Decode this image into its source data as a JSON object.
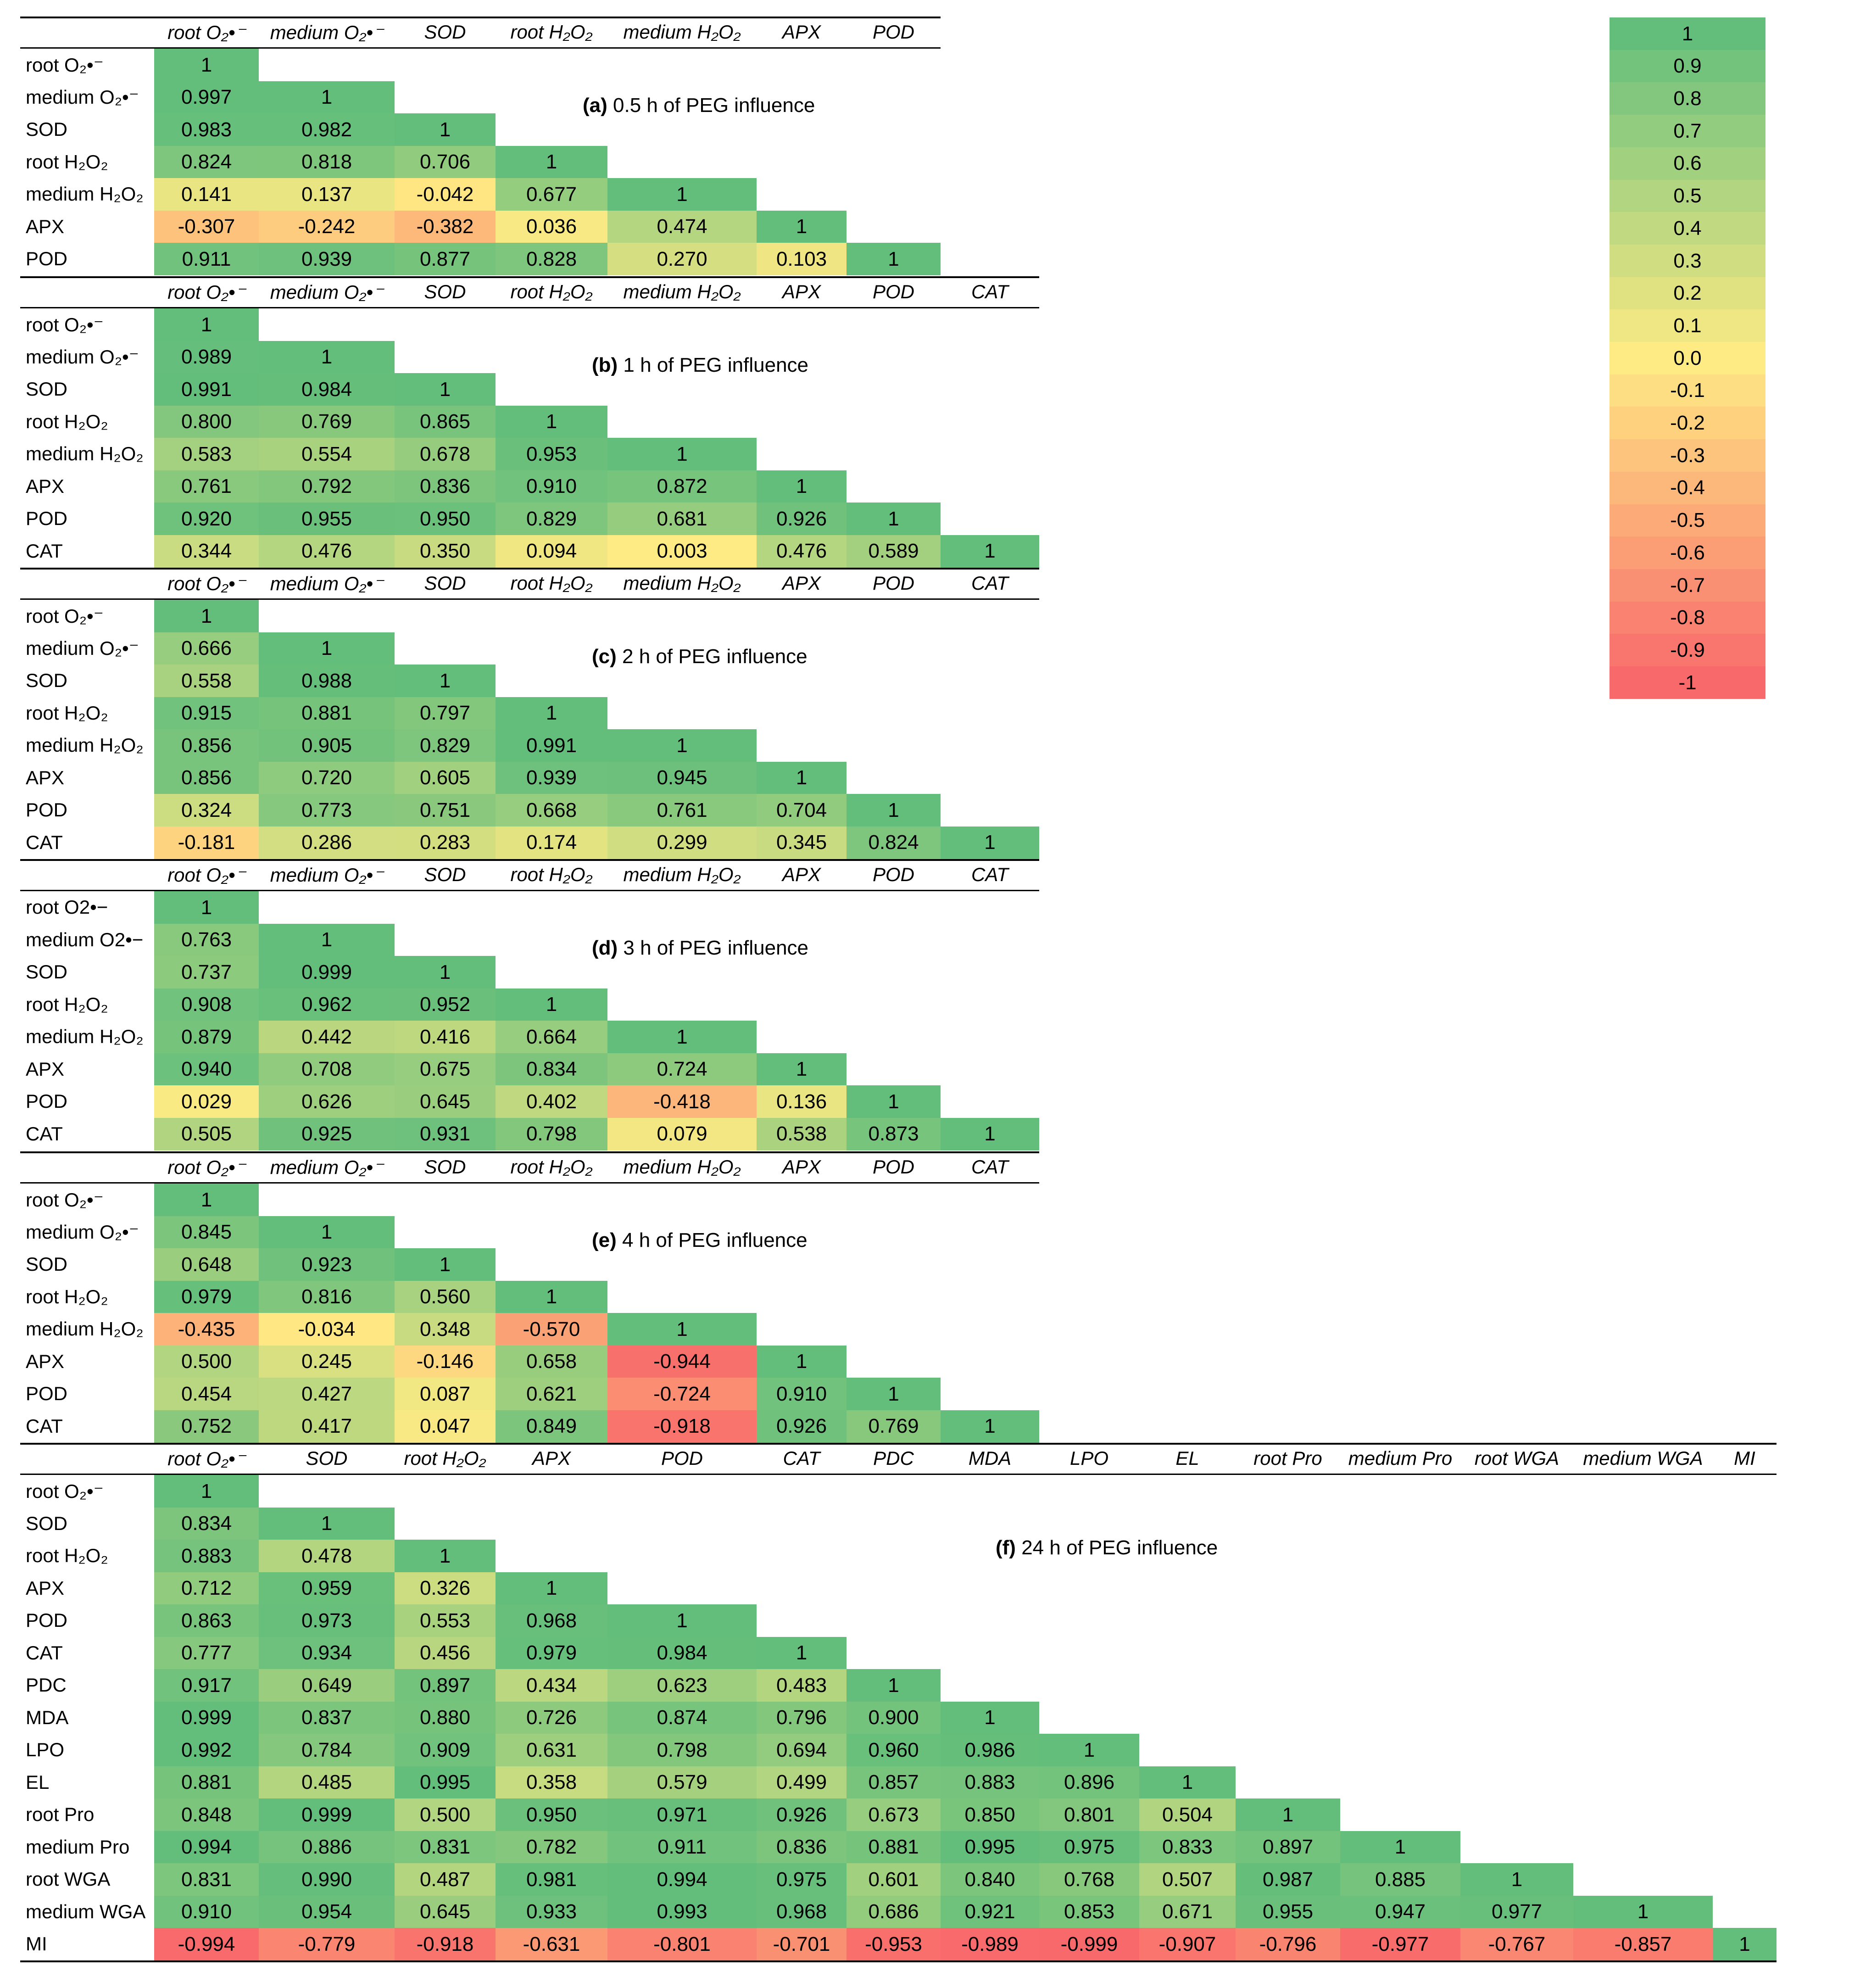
{
  "chart_data": [
    {
      "type": "heatmap",
      "panel": "(a)",
      "title": "0.5 h of PEG influence",
      "col_labels": [
        "root O₂•⁻",
        "medium O₂•⁻",
        "SOD",
        "root H₂O₂",
        "medium H₂O₂",
        "APX",
        "POD"
      ],
      "row_labels": [
        "root O₂•⁻",
        "medium O₂•⁻",
        "SOD",
        "root H₂O₂",
        "medium H₂O₂",
        "APX",
        "POD"
      ],
      "values": [
        [
          "1"
        ],
        [
          "0.997",
          "1"
        ],
        [
          "0.983",
          "0.982",
          "1"
        ],
        [
          "0.824",
          "0.818",
          "0.706",
          "1"
        ],
        [
          "0.141",
          "0.137",
          "-0.042",
          "0.677",
          "1"
        ],
        [
          "-0.307",
          "-0.242",
          "-0.382",
          "0.036",
          "0.474",
          "1"
        ],
        [
          "0.911",
          "0.939",
          "0.877",
          "0.828",
          "0.270",
          "0.103",
          "1"
        ]
      ]
    },
    {
      "type": "heatmap",
      "panel": "(b)",
      "title": "1 h of PEG influence",
      "col_labels": [
        "root O₂•⁻",
        "medium O₂•⁻",
        "SOD",
        "root H₂O₂",
        "medium H₂O₂",
        "APX",
        "POD",
        "CAT"
      ],
      "row_labels": [
        "root O₂•⁻",
        "medium O₂•⁻",
        "SOD",
        "root H₂O₂",
        "medium H₂O₂",
        "APX",
        "POD",
        "CAT"
      ],
      "values": [
        [
          "1"
        ],
        [
          "0.989",
          "1"
        ],
        [
          "0.991",
          "0.984",
          "1"
        ],
        [
          "0.800",
          "0.769",
          "0.865",
          "1"
        ],
        [
          "0.583",
          "0.554",
          "0.678",
          "0.953",
          "1"
        ],
        [
          "0.761",
          "0.792",
          "0.836",
          "0.910",
          "0.872",
          "1"
        ],
        [
          "0.920",
          "0.955",
          "0.950",
          "0.829",
          "0.681",
          "0.926",
          "1"
        ],
        [
          "0.344",
          "0.476",
          "0.350",
          "0.094",
          "0.003",
          "0.476",
          "0.589",
          "1"
        ]
      ]
    },
    {
      "type": "heatmap",
      "panel": "(c)",
      "title": "2 h of PEG influence",
      "col_labels": [
        "root O₂•⁻",
        "medium O₂•⁻",
        "SOD",
        "root H₂O₂",
        "medium H₂O₂",
        "APX",
        "POD",
        "CAT"
      ],
      "row_labels": [
        "root O₂•⁻",
        "medium O₂•⁻",
        "SOD",
        "root H₂O₂",
        "medium H₂O₂",
        "APX",
        "POD",
        "CAT"
      ],
      "values": [
        [
          "1"
        ],
        [
          "0.666",
          "1"
        ],
        [
          "0.558",
          "0.988",
          "1"
        ],
        [
          "0.915",
          "0.881",
          "0.797",
          "1"
        ],
        [
          "0.856",
          "0.905",
          "0.829",
          "0.991",
          "1"
        ],
        [
          "0.856",
          "0.720",
          "0.605",
          "0.939",
          "0.945",
          "1"
        ],
        [
          "0.324",
          "0.773",
          "0.751",
          "0.668",
          "0.761",
          "0.704",
          "1"
        ],
        [
          "-0.181",
          "0.286",
          "0.283",
          "0.174",
          "0.299",
          "0.345",
          "0.824",
          "1"
        ]
      ]
    },
    {
      "type": "heatmap",
      "panel": "(d)",
      "title": "3 h of PEG influence",
      "col_labels": [
        "root O₂•⁻",
        "medium O₂•⁻",
        "SOD",
        "root H₂O₂",
        "medium H₂O₂",
        "APX",
        "POD",
        "CAT"
      ],
      "row_labels": [
        "root O2•−",
        "medium O2•−",
        "SOD",
        "root H₂O₂",
        "medium H₂O₂",
        "APX",
        "POD",
        "CAT"
      ],
      "values": [
        [
          "1"
        ],
        [
          "0.763",
          "1"
        ],
        [
          "0.737",
          "0.999",
          "1"
        ],
        [
          "0.908",
          "0.962",
          "0.952",
          "1"
        ],
        [
          "0.879",
          "0.442",
          "0.416",
          "0.664",
          "1"
        ],
        [
          "0.940",
          "0.708",
          "0.675",
          "0.834",
          "0.724",
          "1"
        ],
        [
          "0.029",
          "0.626",
          "0.645",
          "0.402",
          "-0.418",
          "0.136",
          "1"
        ],
        [
          "0.505",
          "0.925",
          "0.931",
          "0.798",
          "0.079",
          "0.538",
          "0.873",
          "1"
        ]
      ]
    },
    {
      "type": "heatmap",
      "panel": "(e)",
      "title": "4 h of PEG influence",
      "col_labels": [
        "root O₂•⁻",
        "medium O₂•⁻",
        "SOD",
        "root H₂O₂",
        "medium H₂O₂",
        "APX",
        "POD",
        "CAT"
      ],
      "row_labels": [
        "root O₂•⁻",
        "medium O₂•⁻",
        "SOD",
        "root H₂O₂",
        "medium H₂O₂",
        "APX",
        "POD",
        "CAT"
      ],
      "values": [
        [
          "1"
        ],
        [
          "0.845",
          "1"
        ],
        [
          "0.648",
          "0.923",
          "1"
        ],
        [
          "0.979",
          "0.816",
          "0.560",
          "1"
        ],
        [
          "-0.435",
          "-0.034",
          "0.348",
          "-0.570",
          "1"
        ],
        [
          "0.500",
          "0.245",
          "-0.146",
          "0.658",
          "-0.944",
          "1"
        ],
        [
          "0.454",
          "0.427",
          "0.087",
          "0.621",
          "-0.724",
          "0.910",
          "1"
        ],
        [
          "0.752",
          "0.417",
          "0.047",
          "0.849",
          "-0.918",
          "0.926",
          "0.769",
          "1"
        ]
      ]
    },
    {
      "type": "heatmap",
      "panel": "(f)",
      "title": "24 h of PEG influence",
      "col_labels": [
        "root O₂•⁻",
        "SOD",
        "root H₂O₂",
        "APX",
        "POD",
        "CAT",
        "PDC",
        "MDA",
        "LPO",
        "EL",
        "root Pro",
        "medium Pro",
        "root WGA",
        "medium WGA",
        "MI"
      ],
      "row_labels": [
        "root O₂•⁻",
        "SOD",
        "root H₂O₂",
        "APX",
        "POD",
        "CAT",
        "PDC",
        "MDA",
        "LPO",
        "EL",
        "root Pro",
        "medium Pro",
        "root WGA",
        "medium WGA",
        "MI"
      ],
      "values": [
        [
          "1"
        ],
        [
          "0.834",
          "1"
        ],
        [
          "0.883",
          "0.478",
          "1"
        ],
        [
          "0.712",
          "0.959",
          "0.326",
          "1"
        ],
        [
          "0.863",
          "0.973",
          "0.553",
          "0.968",
          "1"
        ],
        [
          "0.777",
          "0.934",
          "0.456",
          "0.979",
          "0.984",
          "1"
        ],
        [
          "0.917",
          "0.649",
          "0.897",
          "0.434",
          "0.623",
          "0.483",
          "1"
        ],
        [
          "0.999",
          "0.837",
          "0.880",
          "0.726",
          "0.874",
          "0.796",
          "0.900",
          "1"
        ],
        [
          "0.992",
          "0.784",
          "0.909",
          "0.631",
          "0.798",
          "0.694",
          "0.960",
          "0.986",
          "1"
        ],
        [
          "0.881",
          "0.485",
          "0.995",
          "0.358",
          "0.579",
          "0.499",
          "0.857",
          "0.883",
          "0.896",
          "1"
        ],
        [
          "0.848",
          "0.999",
          "0.500",
          "0.950",
          "0.971",
          "0.926",
          "0.673",
          "0.850",
          "0.801",
          "0.504",
          "1"
        ],
        [
          "0.994",
          "0.886",
          "0.831",
          "0.782",
          "0.911",
          "0.836",
          "0.881",
          "0.995",
          "0.975",
          "0.833",
          "0.897",
          "1"
        ],
        [
          "0.831",
          "0.990",
          "0.487",
          "0.981",
          "0.994",
          "0.975",
          "0.601",
          "0.840",
          "0.768",
          "0.507",
          "0.987",
          "0.885",
          "1"
        ],
        [
          "0.910",
          "0.954",
          "0.645",
          "0.933",
          "0.993",
          "0.968",
          "0.686",
          "0.921",
          "0.853",
          "0.671",
          "0.955",
          "0.947",
          "0.977",
          "1"
        ],
        [
          "-0.994",
          "-0.779",
          "-0.918",
          "-0.631",
          "-0.801",
          "-0.701",
          "-0.953",
          "-0.989",
          "-0.999",
          "-0.907",
          "-0.796",
          "-0.977",
          "-0.767",
          "-0.857",
          "1"
        ]
      ]
    }
  ],
  "legend": {
    "labels": [
      "1",
      "0.9",
      "0.8",
      "0.7",
      "0.6",
      "0.5",
      "0.4",
      "0.3",
      "0.2",
      "0.1",
      "0.0",
      "-0.1",
      "-0.2",
      "-0.3",
      "-0.4",
      "-0.5",
      "-0.6",
      "-0.7",
      "-0.8",
      "-0.9",
      "-1"
    ],
    "color_scale": {
      "min": -1,
      "mid": 0,
      "max": 1,
      "min_color": "#f8696b",
      "mid_color": "#ffeb84",
      "max_color": "#63be7b"
    }
  }
}
